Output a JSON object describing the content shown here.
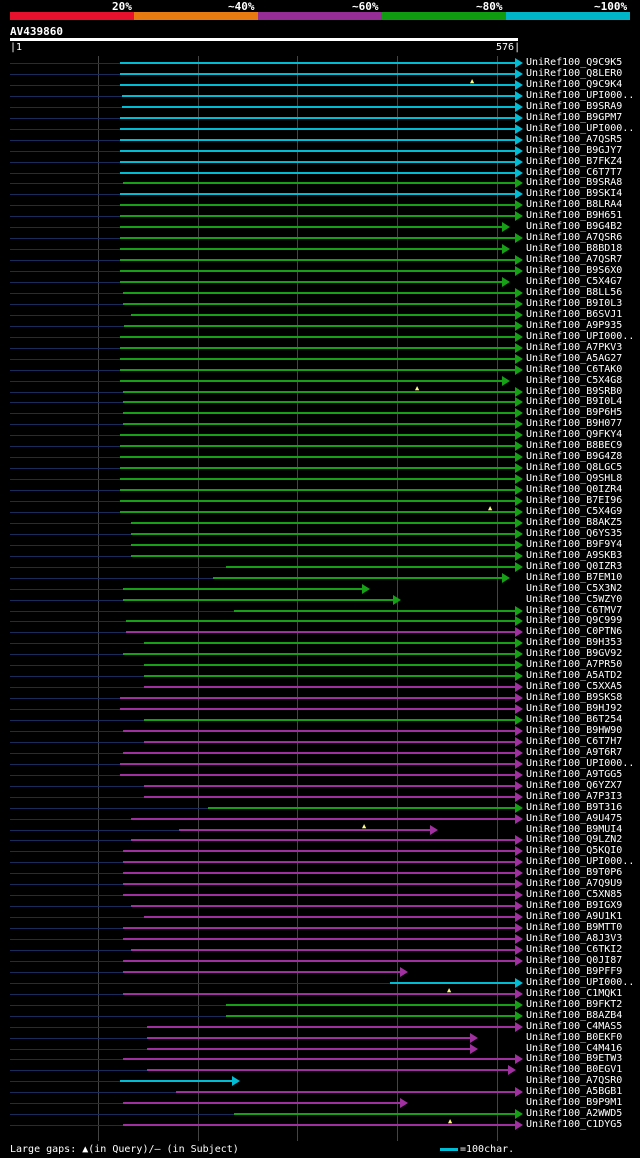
{
  "legend": {
    "labels": [
      "20%",
      "~40%",
      "~60%",
      "~80%",
      "~100%"
    ],
    "colors": [
      "#e8112d",
      "#e87a12",
      "#962d96",
      "#109c10",
      "#00b5c8"
    ]
  },
  "query": {
    "id": "AV439860",
    "start": "1",
    "end": "576"
  },
  "footer": {
    "text": "Large gaps: ▲(in Query)/— (in Subject)",
    "scale": "=100char."
  },
  "hits": [
    {
      "label": "UniRef100_Q9C9K5",
      "color": "cyan",
      "s": 120,
      "e": 515,
      "arrow": true,
      "gq": []
    },
    {
      "label": "UniRef100_Q8LER0",
      "color": "cyan",
      "s": 120,
      "e": 515,
      "arrow": true,
      "gq": []
    },
    {
      "label": "UniRef100_Q9C9K4",
      "color": "cyan",
      "s": 120,
      "e": 515,
      "arrow": true,
      "gq": [
        472
      ]
    },
    {
      "label": "UniRef100_UPI000..",
      "color": "cyan",
      "s": 122,
      "e": 515,
      "arrow": true,
      "gq": []
    },
    {
      "label": "UniRef100_B9SRA9",
      "color": "cyan",
      "s": 122,
      "e": 515,
      "arrow": true,
      "gq": []
    },
    {
      "label": "UniRef100_B9GPM7",
      "color": "cyan",
      "s": 120,
      "e": 515,
      "arrow": true,
      "gq": []
    },
    {
      "label": "UniRef100_UPI000..",
      "color": "cyan",
      "s": 120,
      "e": 515,
      "arrow": true,
      "gq": []
    },
    {
      "label": "UniRef100_A7QSR5",
      "color": "cyan",
      "s": 120,
      "e": 515,
      "arrow": true,
      "gq": []
    },
    {
      "label": "UniRef100_B9GJY7",
      "color": "cyan",
      "s": 120,
      "e": 515,
      "arrow": true,
      "gq": []
    },
    {
      "label": "UniRef100_B7FKZ4",
      "color": "cyan",
      "s": 120,
      "e": 515,
      "arrow": true,
      "gq": []
    },
    {
      "label": "UniRef100_C6T7T7",
      "color": "cyan",
      "s": 120,
      "e": 515,
      "arrow": true,
      "gq": []
    },
    {
      "label": "UniRef100_B9SRA8",
      "color": "green",
      "s": 123,
      "e": 515,
      "arrow": true,
      "gq": []
    },
    {
      "label": "UniRef100_B9SKI4",
      "color": "cyan",
      "s": 120,
      "e": 515,
      "arrow": true,
      "gq": []
    },
    {
      "label": "UniRef100_B8LRA4",
      "color": "green",
      "s": 120,
      "e": 515,
      "arrow": true,
      "gq": []
    },
    {
      "label": "UniRef100_B9H651",
      "color": "green",
      "s": 120,
      "e": 515,
      "arrow": true,
      "gq": []
    },
    {
      "label": "UniRef100_B9G4B2",
      "color": "green",
      "s": 120,
      "e": 502,
      "arrow": true,
      "gq": []
    },
    {
      "label": "UniRef100_A7QSR6",
      "color": "green",
      "s": 120,
      "e": 515,
      "arrow": true,
      "gq": []
    },
    {
      "label": "UniRef100_B8BD18",
      "color": "green",
      "s": 120,
      "e": 502,
      "arrow": true,
      "gq": []
    },
    {
      "label": "UniRef100_A7QSR7",
      "color": "green",
      "s": 120,
      "e": 515,
      "arrow": true,
      "gq": []
    },
    {
      "label": "UniRef100_B9S6X0",
      "color": "green",
      "s": 120,
      "e": 515,
      "arrow": true,
      "gq": []
    },
    {
      "label": "UniRef100_C5X4G7",
      "color": "green",
      "s": 120,
      "e": 502,
      "arrow": true,
      "gq": []
    },
    {
      "label": "UniRef100_B8LL56",
      "color": "green",
      "s": 123,
      "e": 515,
      "arrow": true,
      "gq": []
    },
    {
      "label": "UniRef100_B9I0L3",
      "color": "green",
      "s": 123,
      "e": 515,
      "arrow": true,
      "gq": []
    },
    {
      "label": "UniRef100_B6SVJ1",
      "color": "green",
      "s": 131,
      "e": 515,
      "arrow": true,
      "gq": []
    },
    {
      "label": "UniRef100_A9P935",
      "color": "green",
      "s": 124,
      "e": 515,
      "arrow": true,
      "gq": []
    },
    {
      "label": "UniRef100_UPI000..",
      "color": "green",
      "s": 120,
      "e": 515,
      "arrow": true,
      "gq": []
    },
    {
      "label": "UniRef100_A7PKV3",
      "color": "green",
      "s": 120,
      "e": 515,
      "arrow": true,
      "gq": []
    },
    {
      "label": "UniRef100_A5AG27",
      "color": "green",
      "s": 120,
      "e": 515,
      "arrow": true,
      "gq": []
    },
    {
      "label": "UniRef100_C6TAK0",
      "color": "green",
      "s": 120,
      "e": 515,
      "arrow": true,
      "gq": []
    },
    {
      "label": "UniRef100_C5X4G8",
      "color": "green",
      "s": 120,
      "e": 502,
      "arrow": true,
      "gq": []
    },
    {
      "label": "UniRef100_B9SRB0",
      "color": "green",
      "s": 123,
      "e": 515,
      "arrow": true,
      "gq": [
        417
      ]
    },
    {
      "label": "UniRef100_B9I0L4",
      "color": "green",
      "s": 123,
      "e": 515,
      "arrow": true,
      "gq": []
    },
    {
      "label": "UniRef100_B9P6H5",
      "color": "green",
      "s": 123,
      "e": 515,
      "arrow": true,
      "gq": []
    },
    {
      "label": "UniRef100_B9H077",
      "color": "green",
      "s": 123,
      "e": 515,
      "arrow": true,
      "gq": []
    },
    {
      "label": "UniRef100_Q9FKY4",
      "color": "green",
      "s": 120,
      "e": 515,
      "arrow": true,
      "gq": []
    },
    {
      "label": "UniRef100_B8BEC9",
      "color": "green",
      "s": 120,
      "e": 515,
      "arrow": true,
      "gq": []
    },
    {
      "label": "UniRef100_B9G4Z8",
      "color": "green",
      "s": 120,
      "e": 515,
      "arrow": true,
      "gq": []
    },
    {
      "label": "UniRef100_Q8LGC5",
      "color": "green",
      "s": 120,
      "e": 515,
      "arrow": true,
      "gq": []
    },
    {
      "label": "UniRef100_Q9SHL8",
      "color": "green",
      "s": 120,
      "e": 515,
      "arrow": true,
      "gq": []
    },
    {
      "label": "UniRef100_Q0IZR4",
      "color": "green",
      "s": 120,
      "e": 515,
      "arrow": true,
      "gq": []
    },
    {
      "label": "UniRef100_B7EI96",
      "color": "green",
      "s": 120,
      "e": 515,
      "arrow": true,
      "gq": []
    },
    {
      "label": "UniRef100_C5X4G9",
      "color": "green",
      "s": 120,
      "e": 515,
      "arrow": true,
      "gq": [
        490
      ]
    },
    {
      "label": "UniRef100_B8AKZ5",
      "color": "green",
      "s": 131,
      "e": 515,
      "arrow": true,
      "gq": []
    },
    {
      "label": "UniRef100_Q6YS35",
      "color": "green",
      "s": 131,
      "e": 515,
      "arrow": true,
      "gq": []
    },
    {
      "label": "UniRef100_B9F9Y4",
      "color": "green",
      "s": 131,
      "e": 515,
      "arrow": true,
      "gq": []
    },
    {
      "label": "UniRef100_A9SKB3",
      "color": "green",
      "s": 131,
      "e": 515,
      "arrow": true,
      "gq": []
    },
    {
      "label": "UniRef100_Q0IZR3",
      "color": "green",
      "s": 226,
      "e": 515,
      "arrow": true,
      "gq": []
    },
    {
      "label": "UniRef100_B7EM10",
      "color": "green",
      "s": 213,
      "e": 502,
      "arrow": true,
      "gq": []
    },
    {
      "label": "UniRef100_C5X3N2",
      "color": "green",
      "s": 123,
      "e": 362,
      "arrow": true,
      "gq": []
    },
    {
      "label": "UniRef100_C5WZY0",
      "color": "green",
      "s": 123,
      "e": 393,
      "arrow": true,
      "gq": []
    },
    {
      "label": "UniRef100_C6TMV7",
      "color": "green",
      "s": 234,
      "e": 515,
      "arrow": true,
      "gq": []
    },
    {
      "label": "UniRef100_Q9C999",
      "color": "green",
      "s": 126,
      "e": 515,
      "arrow": true,
      "gq": []
    },
    {
      "label": "UniRef100_C0PTN6",
      "color": "magenta",
      "s": 126,
      "e": 515,
      "arrow": true,
      "gq": []
    },
    {
      "label": "UniRef100_B9H353",
      "color": "green",
      "s": 144,
      "e": 515,
      "arrow": true,
      "gq": []
    },
    {
      "label": "UniRef100_B9GV92",
      "color": "green",
      "s": 123,
      "e": 515,
      "arrow": true,
      "gq": []
    },
    {
      "label": "UniRef100_A7PR50",
      "color": "green",
      "s": 144,
      "e": 515,
      "arrow": true,
      "gq": []
    },
    {
      "label": "UniRef100_A5ATD2",
      "color": "green",
      "s": 144,
      "e": 515,
      "arrow": true,
      "gq": []
    },
    {
      "label": "UniRef100_C5XXA5",
      "color": "magenta",
      "s": 144,
      "e": 515,
      "arrow": true,
      "gq": []
    },
    {
      "label": "UniRef100_B9SKS8",
      "color": "magenta",
      "s": 120,
      "e": 515,
      "arrow": true,
      "gq": []
    },
    {
      "label": "UniRef100_B9HJ92",
      "color": "magenta",
      "s": 120,
      "e": 515,
      "arrow": true,
      "gq": []
    },
    {
      "label": "UniRef100_B6T254",
      "color": "green",
      "s": 144,
      "e": 515,
      "arrow": true,
      "gq": []
    },
    {
      "label": "UniRef100_B9HW90",
      "color": "magenta",
      "s": 123,
      "e": 515,
      "arrow": true,
      "gq": []
    },
    {
      "label": "UniRef100_C6T7H7",
      "color": "magenta",
      "s": 144,
      "e": 515,
      "arrow": true,
      "gq": []
    },
    {
      "label": "UniRef100_A9T6R7",
      "color": "magenta",
      "s": 123,
      "e": 515,
      "arrow": true,
      "gq": []
    },
    {
      "label": "UniRef100_UPI000..",
      "color": "magenta",
      "s": 120,
      "e": 515,
      "arrow": true,
      "gq": []
    },
    {
      "label": "UniRef100_A9TGG5",
      "color": "magenta",
      "s": 120,
      "e": 515,
      "arrow": true,
      "gq": []
    },
    {
      "label": "UniRef100_Q6YZX7",
      "color": "magenta",
      "s": 144,
      "e": 515,
      "arrow": true,
      "gq": []
    },
    {
      "label": "UniRef100_A7P3I3",
      "color": "magenta",
      "s": 144,
      "e": 515,
      "arrow": true,
      "gq": []
    },
    {
      "label": "UniRef100_B9T316",
      "color": "green",
      "s": 208,
      "e": 515,
      "arrow": true,
      "gq": []
    },
    {
      "label": "UniRef100_A9U475",
      "color": "magenta",
      "s": 131,
      "e": 515,
      "arrow": true,
      "gq": []
    },
    {
      "label": "UniRef100_B9MUI4",
      "color": "magenta",
      "s": 179,
      "e": 430,
      "arrow": true,
      "gq": [
        364
      ]
    },
    {
      "label": "UniRef100_Q9LZN2",
      "color": "magenta",
      "s": 131,
      "e": 515,
      "arrow": true,
      "gq": []
    },
    {
      "label": "UniRef100_Q5KQI0",
      "color": "magenta",
      "s": 123,
      "e": 515,
      "arrow": true,
      "gq": []
    },
    {
      "label": "UniRef100_UPI000..",
      "color": "magenta",
      "s": 123,
      "e": 515,
      "arrow": true,
      "gq": []
    },
    {
      "label": "UniRef100_B9T0P6",
      "color": "magenta",
      "s": 123,
      "e": 515,
      "arrow": true,
      "gq": []
    },
    {
      "label": "UniRef100_A7Q9U9",
      "color": "magenta",
      "s": 123,
      "e": 515,
      "arrow": true,
      "gq": []
    },
    {
      "label": "UniRef100_C5XN85",
      "color": "magenta",
      "s": 123,
      "e": 515,
      "arrow": true,
      "gq": []
    },
    {
      "label": "UniRef100_B9IGX9",
      "color": "magenta",
      "s": 131,
      "e": 515,
      "arrow": true,
      "gq": []
    },
    {
      "label": "UniRef100_A9U1K1",
      "color": "magenta",
      "s": 144,
      "e": 515,
      "arrow": true,
      "gq": []
    },
    {
      "label": "UniRef100_B9MTT0",
      "color": "magenta",
      "s": 123,
      "e": 515,
      "arrow": true,
      "gq": []
    },
    {
      "label": "UniRef100_A8J3V3",
      "color": "magenta",
      "s": 123,
      "e": 515,
      "arrow": true,
      "gq": []
    },
    {
      "label": "UniRef100_C6TKI2",
      "color": "magenta",
      "s": 131,
      "e": 515,
      "arrow": true,
      "gq": []
    },
    {
      "label": "UniRef100_Q0JI87",
      "color": "magenta",
      "s": 123,
      "e": 515,
      "arrow": true,
      "gq": []
    },
    {
      "label": "UniRef100_B9PFF9",
      "color": "magenta",
      "s": 123,
      "e": 400,
      "arrow": true,
      "gq": []
    },
    {
      "label": "UniRef100_UPI000..",
      "color": "cyan",
      "s": 390,
      "e": 515,
      "arrow": true,
      "gq": []
    },
    {
      "label": "UniRef100_C1MQK1",
      "color": "magenta",
      "s": 123,
      "e": 515,
      "arrow": true,
      "gq": [
        449
      ]
    },
    {
      "label": "UniRef100_B9FKT2",
      "color": "green",
      "s": 226,
      "e": 515,
      "arrow": true,
      "gq": []
    },
    {
      "label": "UniRef100_B8AZB4",
      "color": "green",
      "s": 226,
      "e": 515,
      "arrow": true,
      "gq": []
    },
    {
      "label": "UniRef100_C4MAS5",
      "color": "magenta",
      "s": 147,
      "e": 515,
      "arrow": true,
      "gq": []
    },
    {
      "label": "UniRef100_B0EKF0",
      "color": "magenta",
      "s": 147,
      "e": 470,
      "arrow": true,
      "gq": []
    },
    {
      "label": "UniRef100_C4M416",
      "color": "magenta",
      "s": 147,
      "e": 470,
      "arrow": true,
      "gq": []
    },
    {
      "label": "UniRef100_B9ETW3",
      "color": "magenta",
      "s": 123,
      "e": 515,
      "arrow": true,
      "gq": []
    },
    {
      "label": "UniRef100_B0EGV1",
      "color": "magenta",
      "s": 147,
      "e": 508,
      "arrow": true,
      "gq": []
    },
    {
      "label": "UniRef100_A7QSR0",
      "color": "cyan",
      "s": 120,
      "e": 232,
      "arrow": true,
      "gq": []
    },
    {
      "label": "UniRef100_A5BGB1",
      "color": "magenta",
      "s": 176,
      "e": 515,
      "arrow": true,
      "gq": []
    },
    {
      "label": "UniRef100_B9P9M1",
      "color": "magenta",
      "s": 123,
      "e": 400,
      "arrow": true,
      "gq": []
    },
    {
      "label": "UniRef100_A2WWD5",
      "color": "green",
      "s": 234,
      "e": 515,
      "arrow": true,
      "gq": []
    },
    {
      "label": "UniRef100_C1DYG5",
      "color": "magenta",
      "s": 123,
      "e": 515,
      "arrow": true,
      "gq": [
        450
      ]
    }
  ]
}
